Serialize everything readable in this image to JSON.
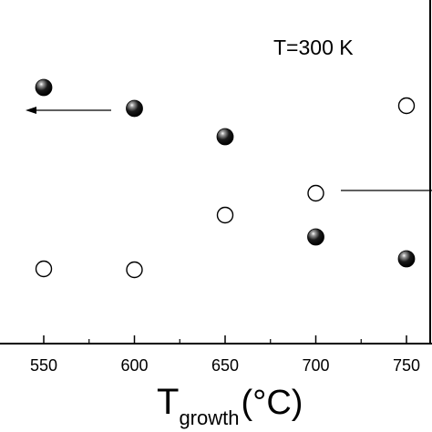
{
  "chart_data": {
    "type": "scatter",
    "title": "",
    "xlabel_main": "T",
    "xlabel_sub": "growth",
    "xlabel_unit": "(°C)",
    "ylabel": "",
    "xlim": [
      520,
      765
    ],
    "x_ticks": [
      "550",
      "600",
      "650",
      "700",
      "750"
    ],
    "annotation": "T=300 K",
    "grid": false,
    "series": [
      {
        "marker": "filled-sphere",
        "axis": "left",
        "color": "#111111",
        "x": [
          550,
          600,
          650,
          700,
          750
        ],
        "y": [
          96,
          119,
          150,
          260,
          284
        ]
      },
      {
        "marker": "open-circle",
        "axis": "right",
        "color": "#000000",
        "x": [
          550,
          600,
          650,
          700,
          750
        ],
        "y": [
          295,
          296,
          236,
          212,
          116
        ]
      }
    ],
    "arrows": [
      {
        "points_to": "left",
        "series": 0
      },
      {
        "points_to": "right",
        "series": 1
      }
    ]
  }
}
